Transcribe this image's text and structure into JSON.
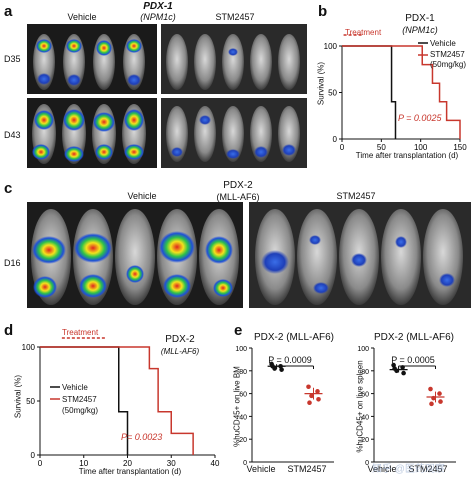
{
  "panel_a": {
    "label": "a",
    "title": "PDX-1",
    "subtitle": "(NPM1c)",
    "group_left": "Vehicle",
    "group_right": "STM2457",
    "row_labels": [
      "D35",
      "D43"
    ]
  },
  "panel_b": {
    "label": "b",
    "title": "PDX-1",
    "subtitle": "(NPM1c)",
    "treatment": "Treatment",
    "ylabel": "Survival (%)",
    "xlabel": "Time after transplantation (d)",
    "legend_vehicle": "Vehicle",
    "legend_stm": "STM2457",
    "legend_dose": "(50mg/kg)",
    "pvalue": "P = 0.0025"
  },
  "panel_c": {
    "label": "c",
    "title": "PDX-2",
    "subtitle": "(MLL-AF6)",
    "group_left": "Vehicle",
    "group_right": "STM2457",
    "row_label": "D16"
  },
  "panel_d": {
    "label": "d",
    "title": "PDX-2",
    "subtitle": "(MLL-AF6)",
    "treatment": "Treatment",
    "ylabel": "Survival (%)",
    "xlabel": "Time after transplantation (d)",
    "legend_vehicle": "Vehicle",
    "legend_stm": "STM2457",
    "legend_dose": "(50mg/kg)",
    "pvalue": "P= 0.0023"
  },
  "panel_e": {
    "label": "e",
    "left_title": "PDX-2 (MLL-AF6)",
    "left_ylabel": "%huCD45+ on live BM",
    "left_pvalue": "P = 0.0009",
    "right_title": "PDX-2 (MLL-AF6)",
    "right_ylabel": "%huCD45+ on live spleen",
    "right_pvalue": "P = 0.0005",
    "cat_vehicle": "Vehicle",
    "cat_stm": "STM2457"
  },
  "watermark": "知乎 @医药观察",
  "colors": {
    "vehicle": "#111111",
    "stm2457": "#c8372d"
  },
  "chart_data": [
    {
      "id": "panel_b",
      "type": "line",
      "title": "PDX-1",
      "xlabel": "Time after transplantation (d)",
      "ylabel": "Survival (%)",
      "xlim": [
        0,
        150
      ],
      "ylim": [
        0,
        100
      ],
      "xticks": [
        0,
        50,
        100,
        150
      ],
      "yticks": [
        0,
        50,
        100
      ],
      "series": [
        {
          "name": "Vehicle",
          "color": "#111111",
          "x": [
            0,
            63,
            63,
            68,
            68
          ],
          "y": [
            100,
            100,
            40,
            40,
            0
          ]
        },
        {
          "name": "STM2457",
          "color": "#c8372d",
          "x": [
            0,
            102,
            102,
            115,
            115,
            124,
            124,
            133,
            133,
            150,
            150
          ],
          "y": [
            100,
            100,
            80,
            80,
            60,
            60,
            40,
            40,
            20,
            20,
            0
          ]
        }
      ]
    },
    {
      "id": "panel_d",
      "type": "line",
      "title": "PDX-2",
      "xlabel": "Time after transplantation (d)",
      "ylabel": "Survival (%)",
      "xlim": [
        0,
        40
      ],
      "ylim": [
        0,
        100
      ],
      "xticks": [
        0,
        10,
        20,
        30,
        40
      ],
      "yticks": [
        0,
        50,
        100
      ],
      "series": [
        {
          "name": "Vehicle",
          "color": "#111111",
          "x": [
            0,
            18,
            18,
            20,
            20
          ],
          "y": [
            100,
            100,
            40,
            40,
            0
          ]
        },
        {
          "name": "STM2457",
          "color": "#c8372d",
          "x": [
            0,
            25,
            25,
            27,
            27,
            30,
            30,
            35,
            35
          ],
          "y": [
            100,
            100,
            80,
            80,
            40,
            40,
            20,
            20,
            0
          ]
        }
      ]
    },
    {
      "id": "panel_e_bm",
      "type": "scatter",
      "title": "PDX-2 (MLL-AF6)",
      "ylabel": "%huCD45+ on live BM",
      "categories": [
        "Vehicle",
        "STM2457"
      ],
      "ylim": [
        0,
        100
      ],
      "yticks": [
        0,
        20,
        40,
        60,
        80,
        100
      ],
      "series": [
        {
          "name": "Vehicle",
          "color": "#111111",
          "values": [
            86,
            84,
            82,
            81,
            84
          ],
          "mean": 84
        },
        {
          "name": "STM2457",
          "color": "#c8372d",
          "values": [
            66,
            62,
            58,
            55,
            52
          ],
          "mean": 60
        }
      ]
    },
    {
      "id": "panel_e_spleen",
      "type": "scatter",
      "title": "PDX-2 (MLL-AF6)",
      "ylabel": "%huCD45+ on live spleen",
      "categories": [
        "Vehicle",
        "STM2457"
      ],
      "ylim": [
        0,
        100
      ],
      "yticks": [
        0,
        20,
        40,
        60,
        80,
        100
      ],
      "series": [
        {
          "name": "Vehicle",
          "color": "#111111",
          "values": [
            85,
            83,
            80,
            78,
            82
          ],
          "mean": 81
        },
        {
          "name": "STM2457",
          "color": "#c8372d",
          "values": [
            64,
            60,
            56,
            53,
            51
          ],
          "mean": 57
        }
      ]
    }
  ]
}
